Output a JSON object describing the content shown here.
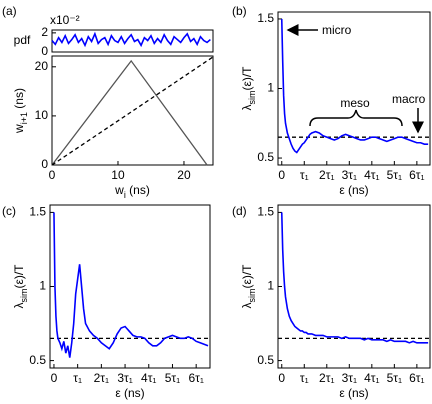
{
  "chart_data": [
    {
      "type": "line",
      "panel_label": "(a)",
      "ylabel": [
        "pdf"
      ],
      "y_multiplier": "x10⁻²",
      "x": [
        0,
        0.5,
        1,
        1.5,
        2,
        2.5,
        3,
        3.5,
        4,
        4.5,
        5,
        5.5,
        6,
        6.5,
        7,
        7.5,
        8,
        8.5,
        9,
        9.5,
        10,
        10.5,
        11,
        11.5,
        12,
        12.5,
        13,
        13.5,
        14,
        14.5,
        15,
        15.5,
        16,
        16.5,
        17,
        17.5,
        18,
        18.5,
        19,
        19.5,
        20,
        20.5,
        21,
        21.5,
        22,
        22.5,
        23,
        23.5,
        24
      ],
      "series": [
        {
          "color": "#0000ff",
          "style": "solid",
          "values": [
            1.2,
            0.8,
            1.5,
            1.0,
            1.7,
            0.9,
            1.3,
            1.8,
            1.0,
            1.4,
            0.7,
            1.6,
            1.1,
            1.9,
            0.9,
            1.3,
            1.5,
            0.8,
            1.7,
            1.2,
            1.0,
            1.6,
            0.9,
            1.4,
            1.8,
            1.1,
            1.3,
            0.7,
            1.5,
            1.2,
            1.7,
            0.9,
            1.4,
            1.0,
            1.8,
            1.2,
            0.8,
            1.6,
            1.3,
            1.0,
            1.5,
            1.9,
            1.1,
            1.4,
            0.8,
            1.6,
            1.2,
            1.0,
            1.3
          ]
        }
      ],
      "xlim": [
        0,
        24.4
      ],
      "ylim": [
        0,
        2.3
      ],
      "yticks": [
        0,
        2
      ]
    },
    {
      "type": "line",
      "xlabel": [
        "w",
        "i",
        " (ns)"
      ],
      "ylabel": [
        "w",
        "i+1",
        " (ns)"
      ],
      "x": [
        0,
        12,
        23.5,
        24.4
      ],
      "series": [
        {
          "color": "#555555",
          "style": "solid",
          "values": [
            0,
            21.2,
            0,
            null
          ]
        },
        {
          "color": "#000000",
          "style": "dashed",
          "values": [
            0,
            10.8,
            21.2,
            22
          ]
        }
      ],
      "xlim": [
        0,
        24.4
      ],
      "ylim": [
        0,
        22.2
      ],
      "xticks": [
        0,
        10,
        20
      ],
      "yticks": [
        0,
        10,
        20
      ]
    },
    {
      "type": "line",
      "panel_label": "(b)",
      "xlabel": [
        "ε (ns)"
      ],
      "ylabel": [
        "λ",
        "sim",
        "(ε)/T"
      ],
      "annotations": [
        "micro",
        "meso",
        "macro"
      ],
      "x": [
        0,
        0.5,
        1,
        1.5,
        2,
        3,
        4,
        5,
        6,
        7,
        8,
        9,
        10,
        11,
        12,
        13,
        14,
        15,
        16,
        18,
        20,
        22,
        24,
        26,
        28,
        30,
        32,
        34,
        36,
        38,
        40,
        42,
        44,
        46,
        48,
        50,
        52,
        54,
        56,
        58,
        60,
        62,
        64,
        66,
        68,
        70,
        72,
        74,
        76,
        78
      ],
      "series": [
        {
          "color": "#0000ff",
          "style": "solid",
          "values": [
            1.5,
            1.2,
            0.95,
            0.82,
            0.75,
            0.68,
            0.64,
            0.6,
            0.57,
            0.55,
            0.54,
            0.56,
            0.58,
            0.6,
            0.61,
            0.63,
            0.65,
            0.67,
            0.68,
            0.69,
            0.68,
            0.66,
            0.65,
            0.64,
            0.63,
            0.64,
            0.66,
            0.67,
            0.66,
            0.65,
            0.64,
            0.63,
            0.63,
            0.64,
            0.65,
            0.65,
            0.64,
            0.63,
            0.62,
            0.63,
            0.64,
            0.65,
            0.65,
            0.64,
            0.63,
            0.62,
            0.61,
            0.61,
            0.6,
            0.6
          ]
        }
      ],
      "reference_line": 0.65,
      "xlim": [
        -2,
        79
      ],
      "ylim": [
        0.45,
        1.55
      ],
      "xticks": [
        0,
        {
          "value": 12,
          "label": "τ₁"
        },
        {
          "value": 24,
          "label": "2τ₁"
        },
        {
          "value": 36,
          "label": "3τ₁"
        },
        {
          "value": 48,
          "label": "4τ₁"
        },
        {
          "value": 60,
          "label": "5τ₁"
        },
        {
          "value": 72,
          "label": "6τ₁"
        }
      ],
      "yticks": [
        0.5,
        1,
        1.5
      ]
    },
    {
      "type": "line",
      "panel_label": "(c)",
      "xlabel": [
        "ε (ns)"
      ],
      "ylabel": [
        "λ",
        "sim",
        "(ε)/T"
      ],
      "x": [
        0,
        0.5,
        1,
        1.5,
        2,
        3,
        4,
        5,
        6,
        7,
        8,
        9,
        10,
        11,
        12,
        13,
        14,
        15,
        16,
        18,
        20,
        22,
        24,
        26,
        28,
        30,
        32,
        34,
        36,
        38,
        40,
        42,
        44,
        46,
        48,
        50,
        52,
        54,
        56,
        58,
        60,
        62,
        64,
        66,
        68,
        70,
        72,
        74,
        76,
        78
      ],
      "series": [
        {
          "color": "#0000ff",
          "style": "solid",
          "values": [
            1.5,
            1.0,
            0.8,
            0.7,
            0.65,
            0.62,
            0.58,
            0.63,
            0.55,
            0.6,
            0.52,
            0.62,
            0.75,
            0.95,
            1.05,
            1.15,
            1.0,
            0.85,
            0.75,
            0.7,
            0.67,
            0.65,
            0.62,
            0.6,
            0.58,
            0.62,
            0.68,
            0.72,
            0.73,
            0.7,
            0.67,
            0.66,
            0.66,
            0.65,
            0.62,
            0.6,
            0.6,
            0.62,
            0.65,
            0.66,
            0.67,
            0.66,
            0.65,
            0.65,
            0.66,
            0.65,
            0.63,
            0.62,
            0.61,
            0.6
          ]
        }
      ],
      "reference_line": 0.65,
      "xlim": [
        -2,
        79
      ],
      "ylim": [
        0.45,
        1.55
      ],
      "xticks": [
        0,
        {
          "value": 12,
          "label": "τ₁"
        },
        {
          "value": 24,
          "label": "2τ₁"
        },
        {
          "value": 36,
          "label": "3τ₁"
        },
        {
          "value": 48,
          "label": "4τ₁"
        },
        {
          "value": 60,
          "label": "5τ₁"
        },
        {
          "value": 72,
          "label": "6τ₁"
        }
      ],
      "yticks": [
        0.5,
        1,
        1.5
      ]
    },
    {
      "type": "line",
      "panel_label": "(d)",
      "xlabel": [
        "ε (ns)"
      ],
      "ylabel": [
        "λ",
        "sim",
        "(ε)/T"
      ],
      "x": [
        0,
        0.5,
        1,
        1.5,
        2,
        3,
        4,
        5,
        6,
        7,
        8,
        9,
        10,
        11,
        12,
        13,
        14,
        15,
        16,
        18,
        20,
        22,
        24,
        26,
        28,
        30,
        32,
        34,
        36,
        38,
        40,
        42,
        44,
        46,
        48,
        50,
        52,
        54,
        56,
        58,
        60,
        62,
        64,
        66,
        68,
        70,
        72,
        74,
        76,
        78
      ],
      "series": [
        {
          "color": "#0000ff",
          "style": "solid",
          "values": [
            1.5,
            1.25,
            1.1,
            1.0,
            0.93,
            0.85,
            0.8,
            0.77,
            0.75,
            0.73,
            0.72,
            0.71,
            0.7,
            0.7,
            0.69,
            0.69,
            0.68,
            0.68,
            0.68,
            0.67,
            0.67,
            0.67,
            0.66,
            0.66,
            0.66,
            0.66,
            0.65,
            0.66,
            0.65,
            0.65,
            0.65,
            0.65,
            0.64,
            0.65,
            0.64,
            0.64,
            0.64,
            0.64,
            0.63,
            0.64,
            0.63,
            0.63,
            0.63,
            0.63,
            0.62,
            0.63,
            0.62,
            0.62,
            0.62,
            0.62
          ]
        }
      ],
      "reference_line": 0.65,
      "xlim": [
        -2,
        79
      ],
      "ylim": [
        0.45,
        1.55
      ],
      "xticks": [
        0,
        {
          "value": 12,
          "label": "τ₁"
        },
        {
          "value": 24,
          "label": "2τ₁"
        },
        {
          "value": 36,
          "label": "3τ₁"
        },
        {
          "value": 48,
          "label": "4τ₁"
        },
        {
          "value": 60,
          "label": "5τ₁"
        },
        {
          "value": 72,
          "label": "6τ₁"
        }
      ],
      "yticks": [
        0.5,
        1,
        1.5
      ]
    }
  ]
}
